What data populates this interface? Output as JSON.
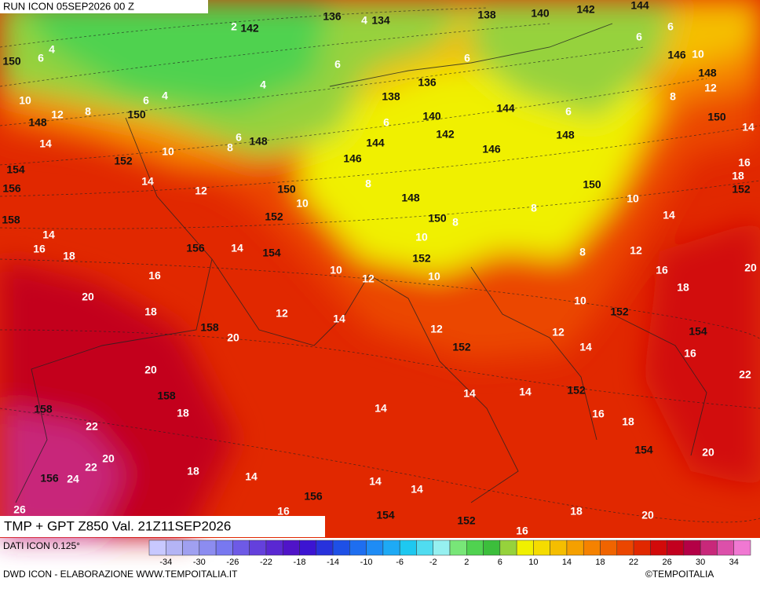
{
  "header": {
    "run": "RUN ICON 05SEP2026 00 Z"
  },
  "footer": {
    "product": "TMP + GPT Z850 Val. 21Z11SEP2026",
    "source": "DATI ICON 0.125°",
    "credit": "DWD ICON - ELABORAZIONE WWW.TEMPOITALIA.IT",
    "brand": "©TEMPOITALIA"
  },
  "colorbar": {
    "range": [
      -36,
      36
    ],
    "colors": [
      "#c8c8ff",
      "#b4b4f5",
      "#a0a0f0",
      "#8c8cf0",
      "#7878f0",
      "#6e5ae6",
      "#6440dc",
      "#5a28d2",
      "#5014c8",
      "#3c14d2",
      "#2832dc",
      "#1e50e6",
      "#1e6ef0",
      "#1e8cf5",
      "#1eaaf5",
      "#1ec8f0",
      "#50dcf0",
      "#96f0f0",
      "#78e678",
      "#50d250",
      "#3cbe3c",
      "#96d23c",
      "#f0f000",
      "#f5dc00",
      "#f5be00",
      "#f5a000",
      "#f58200",
      "#f06400",
      "#eb4600",
      "#e12800",
      "#d20a0a",
      "#c3001e",
      "#b40046",
      "#c8287a",
      "#dc50aa",
      "#f078d2"
    ],
    "ticks": [
      -34,
      -30,
      -26,
      -22,
      -18,
      -14,
      -10,
      -6,
      -2,
      2,
      6,
      10,
      14,
      18,
      22,
      26,
      30,
      34
    ]
  },
  "map": {
    "gpt_labels": [
      136,
      134,
      138,
      140,
      142,
      144,
      142,
      146,
      150,
      148,
      136,
      138,
      140,
      144,
      142,
      148,
      150,
      150,
      146,
      148,
      148,
      144,
      152,
      146,
      154,
      156,
      150,
      150,
      148,
      152,
      158,
      152,
      150,
      156,
      154,
      152,
      152,
      158,
      154,
      152,
      158,
      152,
      158,
      154,
      156,
      156,
      154,
      152
    ],
    "tmp_labels": [
      4,
      2,
      6,
      4,
      6,
      6,
      6,
      10,
      6,
      4,
      12,
      10,
      6,
      4,
      8,
      12,
      8,
      6,
      14,
      6,
      8,
      6,
      10,
      14,
      16,
      18,
      14,
      12,
      8,
      10,
      10,
      14,
      14,
      16,
      18,
      14,
      10,
      8,
      8,
      8,
      12,
      10,
      12,
      10,
      16,
      20,
      16,
      18,
      20,
      10,
      18,
      12,
      14,
      12,
      12,
      14,
      16,
      20,
      20,
      22,
      14,
      14,
      18,
      14,
      16,
      18,
      22,
      20,
      22,
      20,
      18,
      14,
      24,
      14,
      14,
      26,
      16,
      16,
      18,
      20
    ]
  }
}
